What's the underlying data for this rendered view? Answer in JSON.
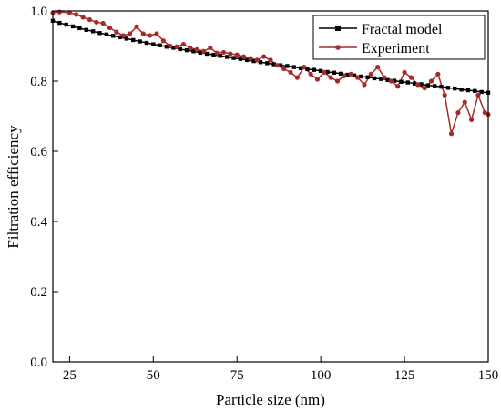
{
  "chart_data": {
    "type": "line",
    "title": "",
    "xlabel": "Particle size (nm)",
    "ylabel": "Filtration efficiency",
    "xlim": [
      20,
      150
    ],
    "ylim": [
      0.0,
      1.0
    ],
    "xticks": [
      25,
      50,
      75,
      100,
      125,
      150
    ],
    "yticks": [
      0.0,
      0.2,
      0.4,
      0.6,
      0.8,
      1.0
    ],
    "xtick_labels": [
      "25",
      "50",
      "75",
      "100",
      "125",
      "150"
    ],
    "ytick_labels": [
      "0.0",
      "0.2",
      "0.4",
      "0.6",
      "0.8",
      "1.0"
    ],
    "grid": false,
    "legend_position": "top-right",
    "series": [
      {
        "name": "Fractal model",
        "color": "#000000",
        "marker": "square",
        "x": [
          20,
          22,
          24,
          26,
          28,
          30,
          32,
          34,
          36,
          38,
          40,
          42,
          44,
          46,
          48,
          50,
          52,
          54,
          56,
          58,
          60,
          62,
          64,
          66,
          68,
          70,
          72,
          74,
          76,
          78,
          80,
          82,
          84,
          86,
          88,
          90,
          92,
          94,
          96,
          98,
          100,
          102,
          104,
          106,
          108,
          110,
          112,
          114,
          116,
          118,
          120,
          122,
          124,
          126,
          128,
          130,
          132,
          134,
          136,
          138,
          140,
          142,
          144,
          146,
          148,
          150
        ],
        "y": [
          0.972,
          0.966,
          0.961,
          0.956,
          0.951,
          0.946,
          0.942,
          0.937,
          0.933,
          0.929,
          0.925,
          0.921,
          0.917,
          0.913,
          0.909,
          0.905,
          0.902,
          0.898,
          0.895,
          0.891,
          0.888,
          0.885,
          0.881,
          0.878,
          0.875,
          0.872,
          0.869,
          0.866,
          0.863,
          0.86,
          0.857,
          0.854,
          0.851,
          0.848,
          0.845,
          0.843,
          0.84,
          0.837,
          0.834,
          0.832,
          0.829,
          0.826,
          0.824,
          0.821,
          0.818,
          0.816,
          0.813,
          0.811,
          0.808,
          0.806,
          0.803,
          0.801,
          0.798,
          0.796,
          0.793,
          0.791,
          0.788,
          0.786,
          0.784,
          0.781,
          0.779,
          0.776,
          0.774,
          0.772,
          0.769,
          0.767
        ]
      },
      {
        "name": "Experiment",
        "color": "#a52a2a",
        "marker": "circle",
        "x": [
          20,
          22,
          25,
          27,
          29,
          31,
          33,
          35,
          37,
          39,
          41,
          43,
          45,
          47,
          49,
          51,
          53,
          55,
          57,
          59,
          61,
          63,
          65,
          67,
          69,
          71,
          73,
          75,
          77,
          79,
          81,
          83,
          85,
          87,
          89,
          91,
          93,
          95,
          97,
          99,
          101,
          103,
          105,
          107,
          109,
          111,
          113,
          115,
          117,
          119,
          121,
          123,
          125,
          127,
          129,
          131,
          133,
          135,
          137,
          139,
          141,
          143,
          145,
          147,
          149,
          150
        ],
        "y": [
          0.995,
          0.997,
          0.995,
          0.99,
          0.982,
          0.975,
          0.968,
          0.965,
          0.952,
          0.94,
          0.93,
          0.935,
          0.955,
          0.935,
          0.93,
          0.935,
          0.915,
          0.9,
          0.898,
          0.905,
          0.895,
          0.89,
          0.885,
          0.895,
          0.88,
          0.882,
          0.878,
          0.875,
          0.87,
          0.865,
          0.86,
          0.87,
          0.86,
          0.845,
          0.835,
          0.825,
          0.81,
          0.84,
          0.82,
          0.805,
          0.825,
          0.81,
          0.8,
          0.815,
          0.82,
          0.81,
          0.79,
          0.82,
          0.84,
          0.81,
          0.8,
          0.785,
          0.825,
          0.81,
          0.79,
          0.78,
          0.8,
          0.82,
          0.76,
          0.65,
          0.71,
          0.74,
          0.69,
          0.76,
          0.71,
          0.705
        ]
      }
    ]
  }
}
